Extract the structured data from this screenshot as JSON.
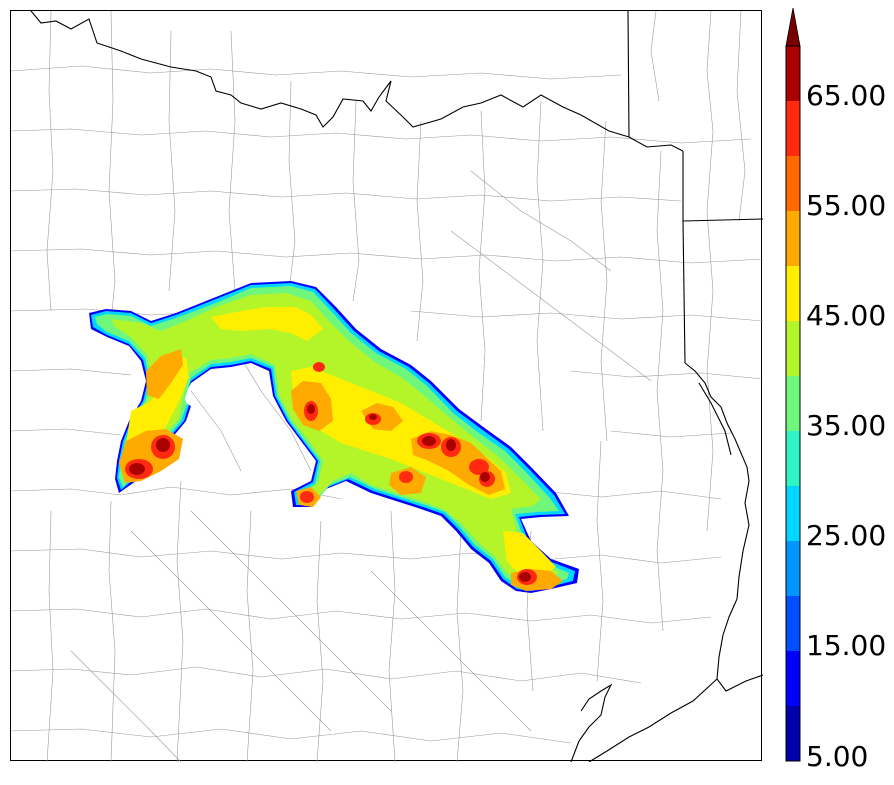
{
  "colorbar": {
    "tick_labels": [
      "5.00",
      "15.00",
      "25.00",
      "35.00",
      "45.00",
      "55.00",
      "65.00"
    ],
    "levels": [
      5,
      10,
      15,
      20,
      25,
      30,
      35,
      40,
      45,
      50,
      55,
      60,
      65,
      70
    ],
    "colors": [
      "#0000aa",
      "#0000ff",
      "#0050ff",
      "#0096ff",
      "#00d7ff",
      "#2ef5c3",
      "#6ff77c",
      "#b4f52a",
      "#ffee00",
      "#ffaa00",
      "#ff6a00",
      "#ff2a10",
      "#aa0000"
    ],
    "extend_color": "#7a0000",
    "extend": "max"
  },
  "map": {
    "feature_types": [
      "county-boundaries",
      "state-boundaries",
      "coastline",
      "precipitation-contours"
    ],
    "colors": {
      "county_line": "#9a9a9a",
      "state_line": "#000000",
      "coast_line": "#000000"
    }
  }
}
